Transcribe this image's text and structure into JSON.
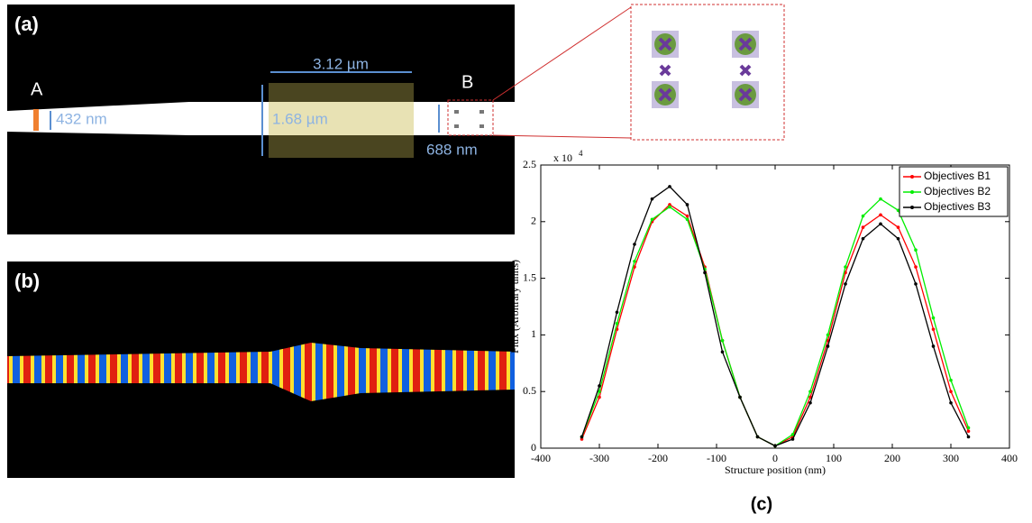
{
  "figure": {
    "panel_a": {
      "label": "(a)",
      "point_a": "A",
      "point_b": "B",
      "width_label": "3.12 µm",
      "height_label": "1.68 µm",
      "input_width": "432 nm",
      "output_width": "688 nm"
    },
    "panel_b": {
      "label": "(b)"
    },
    "panel_c": {
      "label": "(c)"
    }
  },
  "chart_data": {
    "type": "line",
    "x_label": "Structure position (nm)",
    "y_label": "Flux (Arbitrary units)",
    "y_multiplier": "x 10",
    "y_multiplier_exponent": "4",
    "x": [
      -330,
      -300,
      -270,
      -240,
      -210,
      -180,
      -150,
      -120,
      -90,
      -60,
      -30,
      0,
      30,
      60,
      90,
      120,
      150,
      180,
      210,
      240,
      270,
      300,
      330
    ],
    "series": [
      {
        "name": "Objectives B1",
        "color": "#ff0000",
        "values": [
          0.08,
          0.45,
          1.05,
          1.6,
          2.0,
          2.15,
          2.05,
          1.6,
          0.95,
          0.45,
          0.1,
          0.02,
          0.1,
          0.45,
          0.95,
          1.55,
          1.95,
          2.06,
          1.95,
          1.6,
          1.05,
          0.5,
          0.15
        ]
      },
      {
        "name": "Objectives B2",
        "color": "#00ee00",
        "values": [
          0.1,
          0.5,
          1.1,
          1.65,
          2.02,
          2.13,
          2.02,
          1.58,
          0.95,
          0.45,
          0.1,
          0.02,
          0.12,
          0.5,
          1.0,
          1.6,
          2.05,
          2.2,
          2.1,
          1.75,
          1.15,
          0.6,
          0.18
        ]
      },
      {
        "name": "Objectives B3",
        "color": "#000000",
        "values": [
          0.1,
          0.55,
          1.2,
          1.8,
          2.2,
          2.31,
          2.15,
          1.55,
          0.85,
          0.45,
          0.1,
          0.02,
          0.08,
          0.4,
          0.9,
          1.45,
          1.85,
          1.98,
          1.85,
          1.45,
          0.9,
          0.4,
          0.1
        ]
      }
    ],
    "xlim": [
      -400,
      400
    ],
    "xticks": [
      -400,
      -300,
      -200,
      -100,
      0,
      100,
      200,
      300,
      400
    ],
    "ylim": [
      0,
      2.5
    ],
    "yticks": [
      0,
      0.5,
      1,
      1.5,
      2,
      2.5
    ],
    "legend": "upper right"
  }
}
